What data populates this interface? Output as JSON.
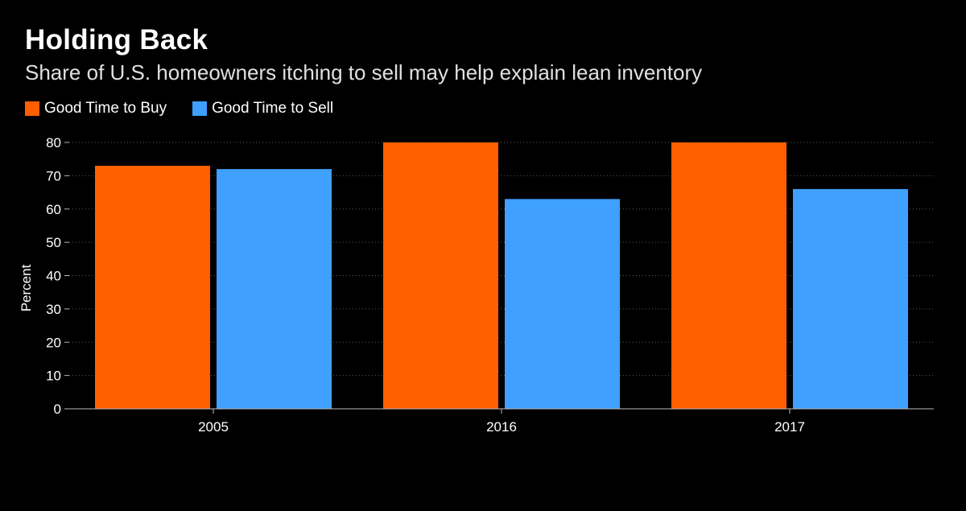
{
  "chart_data": {
    "type": "bar",
    "title": "Holding Back",
    "subtitle": "Share of U.S. homeowners itching to sell may help explain lean inventory",
    "categories": [
      "2005",
      "2016",
      "2017"
    ],
    "series": [
      {
        "name": "Good Time to Buy",
        "values": [
          73,
          80,
          80
        ],
        "color": "#ff5f00"
      },
      {
        "name": "Good Time to Sell",
        "values": [
          72,
          63,
          66
        ],
        "color": "#3fa0ff"
      }
    ],
    "xlabel": "",
    "ylabel": "Percent",
    "ylim": [
      0,
      80
    ],
    "yticks": [
      "0",
      "10",
      "20",
      "30",
      "40",
      "50",
      "60",
      "70",
      "80"
    ],
    "grid": true,
    "legend_position": "top-left"
  }
}
